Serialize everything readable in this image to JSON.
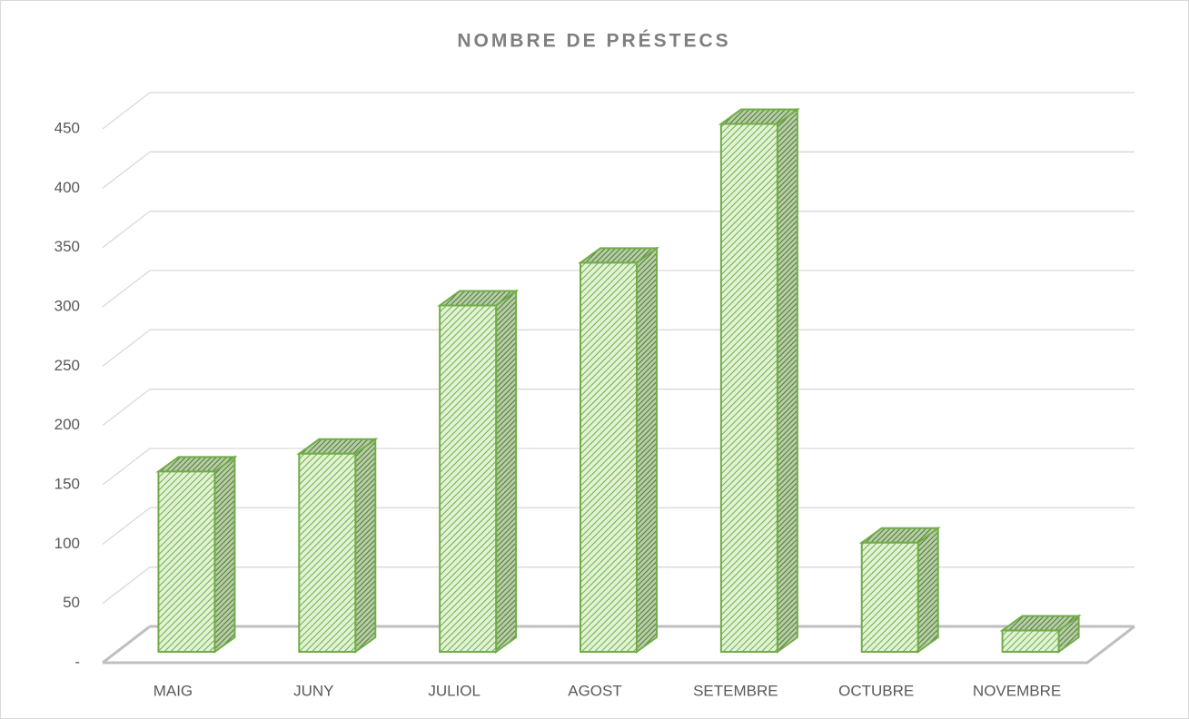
{
  "chart_data": {
    "type": "bar3d",
    "title": "NOMBRE DE PRÉSTECS",
    "categories": [
      "MAIG",
      "JUNY",
      "JULIOL",
      "AGOST",
      "SETEMBRE",
      "OCTUBRE",
      "NOVEMBRE"
    ],
    "values": [
      152,
      167,
      292,
      328,
      445,
      92,
      18
    ],
    "color": "#70ad47",
    "ylim": [
      0,
      450
    ],
    "yticks": [
      {
        "value": 0,
        "label": "-"
      },
      50,
      100,
      150,
      200,
      250,
      300,
      350,
      400,
      450
    ],
    "grid": true
  }
}
